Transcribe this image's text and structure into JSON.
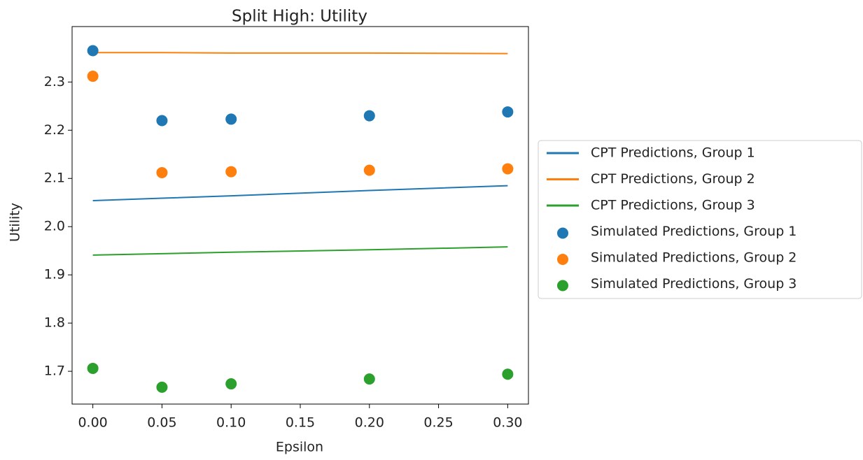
{
  "chart_data": {
    "type": "line",
    "title": "Split High: Utility",
    "x_label": "Epsilon",
    "y_label": "Utility",
    "x": [
      0,
      0.05,
      0.1,
      0.2,
      0.3
    ],
    "series": [
      {
        "name": "CPT Predictions, Group 1",
        "color": "#1f77b4",
        "kind": "line",
        "values": [
          2.054,
          2.059,
          2.064,
          2.075,
          2.085
        ]
      },
      {
        "name": "CPT Predictions, Group 2",
        "color": "#ff7f0e",
        "kind": "line",
        "values": [
          2.361,
          2.361,
          2.36,
          2.36,
          2.359
        ]
      },
      {
        "name": "CPT Predictions, Group 3",
        "color": "#2ca02c",
        "kind": "line",
        "values": [
          1.941,
          1.944,
          1.947,
          1.952,
          1.958
        ]
      },
      {
        "name": "Simulated Predictions, Group 1",
        "color": "#1f77b4",
        "kind": "scatter",
        "values": [
          2.365,
          2.22,
          2.223,
          2.23,
          2.238
        ]
      },
      {
        "name": "Simulated Predictions, Group 2",
        "color": "#ff7f0e",
        "kind": "scatter",
        "values": [
          2.312,
          2.112,
          2.114,
          2.117,
          2.12
        ]
      },
      {
        "name": "Simulated Predictions, Group 3",
        "color": "#2ca02c",
        "kind": "scatter",
        "values": [
          1.706,
          1.667,
          1.674,
          1.684,
          1.694
        ]
      }
    ],
    "xlim": [
      -0.015,
      0.315
    ],
    "xticks": [
      {
        "value": 0,
        "label": "0.00"
      },
      {
        "value": 0.05,
        "label": "0.05"
      },
      {
        "value": 0.1,
        "label": "0.10"
      },
      {
        "value": 0.15,
        "label": "0.15"
      },
      {
        "value": 0.2,
        "label": "0.20"
      },
      {
        "value": 0.25,
        "label": "0.25"
      },
      {
        "value": 0.3,
        "label": "0.30"
      }
    ],
    "ylim": [
      1.632,
      2.415
    ],
    "yticks": [
      1.7,
      1.8,
      1.9,
      {
        "value": 2,
        "label": "2.0"
      },
      2.1,
      2.2,
      2.3
    ],
    "grid": false,
    "legend": "right"
  }
}
